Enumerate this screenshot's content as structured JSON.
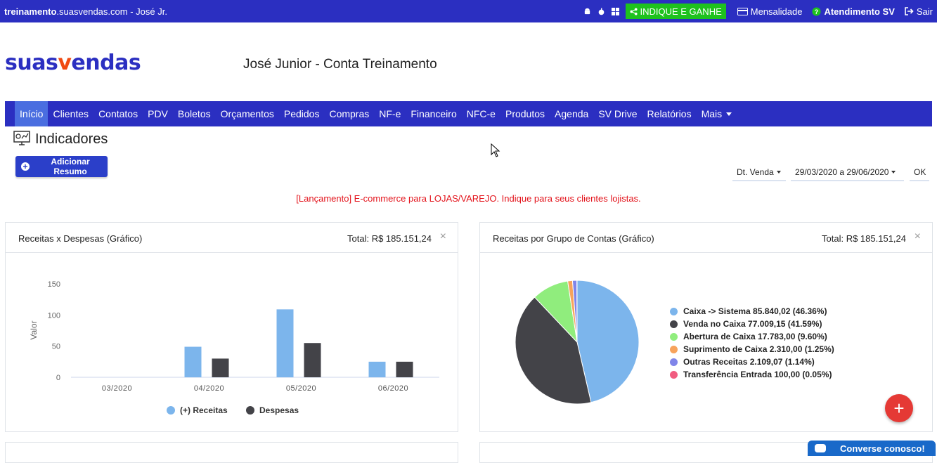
{
  "topbar": {
    "domain_bold": "treinamento",
    "domain_rest": ".suasvendas.com",
    "user": " - José Jr.",
    "os_icons": [
      "android-icon",
      "apple-icon",
      "windows-icon"
    ],
    "indique_label": "INDIQUE E GANHE",
    "mensalidade_label": "Mensalidade",
    "atendimento_label": "Atendimento SV",
    "sair_label": "Sair"
  },
  "header": {
    "logo_part1": "suas",
    "logo_v": "v",
    "logo_part2": "endas",
    "account_name": "José Junior - Conta Treinamento"
  },
  "nav": {
    "items": [
      "Início",
      "Clientes",
      "Contatos",
      "PDV",
      "Boletos",
      "Orçamentos",
      "Pedidos",
      "Compras",
      "NF-e",
      "Financeiro",
      "NFC-e",
      "Produtos",
      "Agenda",
      "SV Drive",
      "Relatórios",
      "Mais"
    ],
    "active": "Início"
  },
  "page": {
    "title": "Indicadores",
    "add_button": "Adicionar Resumo",
    "filter_date_type": "Dt. Venda",
    "filter_range": "29/03/2020 a 29/06/2020",
    "filter_ok": "OK",
    "promo": "[Lançamento] E-commerce para LOJAS/VAREJO. Indique para seus clientes lojistas."
  },
  "cards": {
    "receitas_despesas": {
      "title": "Receitas x Despesas (Gráfico)",
      "total": "Total: R$ 185.151,24",
      "close": "×"
    },
    "receitas_grupo": {
      "title": "Receitas por Grupo de Contas (Gráfico)",
      "total": "Total: R$ 185.151,24",
      "close": "×"
    }
  },
  "chart_data": [
    {
      "type": "bar",
      "ylabel": "Valor",
      "xlabel": "",
      "ylim": [
        0,
        150
      ],
      "yticks": [
        0,
        50,
        100,
        150
      ],
      "categories": [
        "03/2020",
        "04/2020",
        "05/2020",
        "06/2020"
      ],
      "series": [
        {
          "name": "(+) Receitas",
          "values": [
            0,
            49,
            109,
            25
          ],
          "color": "#7cb5ec"
        },
        {
          "name": "Despesas",
          "values": [
            0,
            30,
            55,
            25
          ],
          "color": "#434348"
        }
      ],
      "legend": "bottom"
    },
    {
      "type": "pie",
      "legend": "right",
      "slices": [
        {
          "label": "Caixa -> Sistema 85.840,02 (46.36%)",
          "value": 46.36,
          "color": "#7cb5ec"
        },
        {
          "label": "Venda no Caixa 77.009,15 (41.59%)",
          "value": 41.59,
          "color": "#434348"
        },
        {
          "label": "Abertura de Caixa 17.783,00 (9.60%)",
          "value": 9.6,
          "color": "#90ed7d"
        },
        {
          "label": "Suprimento de Caixa 2.310,00 (1.25%)",
          "value": 1.25,
          "color": "#f7a35c"
        },
        {
          "label": "Outras Receitas 2.109,07 (1.14%)",
          "value": 1.14,
          "color": "#8085e9"
        },
        {
          "label": "Transferência Entrada 100,00 (0.05%)",
          "value": 0.05,
          "color": "#f15c80"
        }
      ]
    }
  ],
  "widgets": {
    "fab_label": "+",
    "chat_label": "Converse conosco!"
  }
}
